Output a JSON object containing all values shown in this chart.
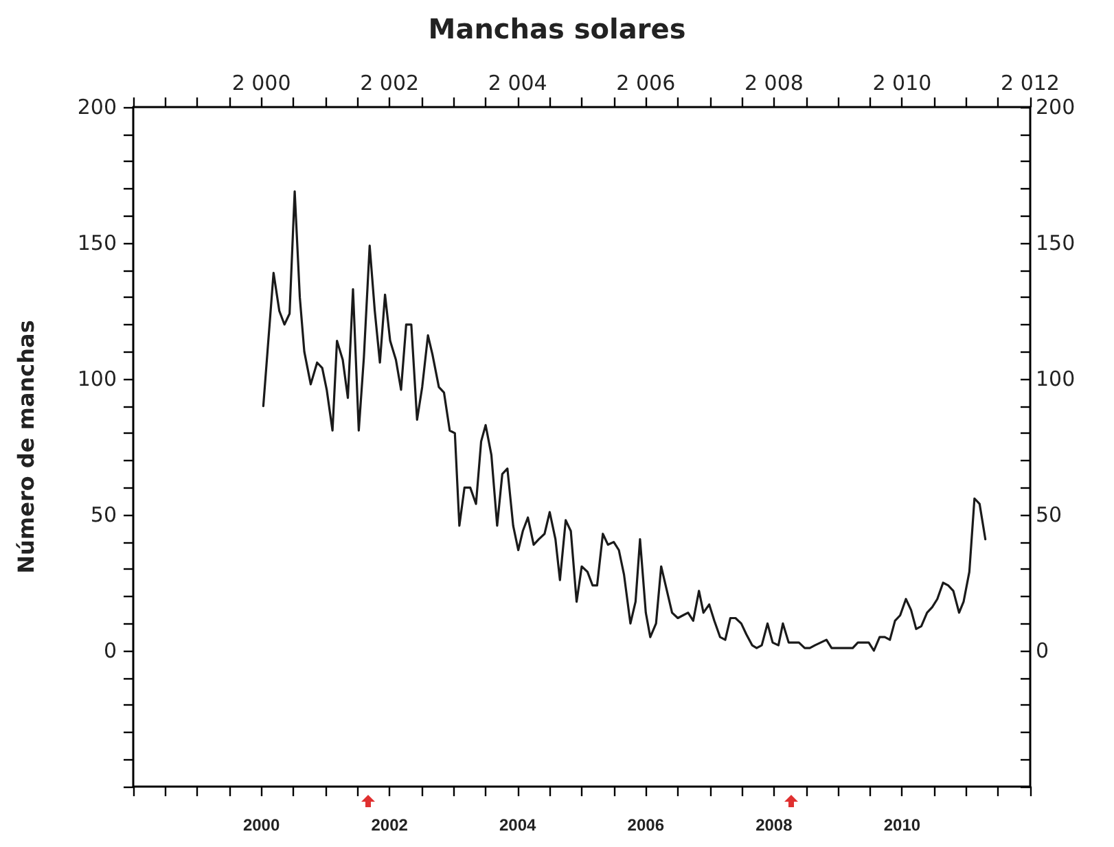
{
  "chart_data": {
    "type": "line",
    "title": "Manchas solares",
    "ylabel": "Número de manchas",
    "x": [
      2000.03,
      2000.19,
      2000.28,
      2000.36,
      2000.44,
      2000.52,
      2000.6,
      2000.67,
      2000.77,
      2000.87,
      2000.95,
      2001.02,
      2001.11,
      2001.18,
      2001.27,
      2001.35,
      2001.43,
      2001.52,
      2001.6,
      2001.69,
      2001.77,
      2001.85,
      2001.93,
      2002.01,
      2002.1,
      2002.18,
      2002.26,
      2002.34,
      2002.43,
      2002.51,
      2002.6,
      2002.67,
      2002.77,
      2002.85,
      2002.94,
      2003.02,
      2003.09,
      2003.17,
      2003.26,
      2003.35,
      2003.43,
      2003.5,
      2003.59,
      2003.68,
      2003.76,
      2003.84,
      2003.93,
      2004.01,
      2004.08,
      2004.16,
      2004.25,
      2004.33,
      2004.42,
      2004.5,
      2004.59,
      2004.66,
      2004.75,
      2004.83,
      2004.92,
      2005.0,
      2005.09,
      2005.17,
      2005.24,
      2005.33,
      2005.41,
      2005.5,
      2005.58,
      2005.66,
      2005.76,
      2005.84,
      2005.91,
      2006.0,
      2006.07,
      2006.16,
      2006.24,
      2006.32,
      2006.41,
      2006.5,
      2006.58,
      2006.66,
      2006.74,
      2006.83,
      2006.9,
      2006.99,
      2007.07,
      2007.16,
      2007.24,
      2007.32,
      2007.4,
      2007.49,
      2007.57,
      2007.66,
      2007.73,
      2007.81,
      2007.9,
      2007.98,
      2008.07,
      2008.14,
      2008.23,
      2008.31,
      2008.39,
      2008.48,
      2008.56,
      2008.64,
      2008.73,
      2008.82,
      2008.9,
      2008.99,
      2009.07,
      2009.15,
      2009.23,
      2009.31,
      2009.4,
      2009.48,
      2009.56,
      2009.65,
      2009.73,
      2009.81,
      2009.89,
      2009.97,
      2010.06,
      2010.14,
      2010.22,
      2010.3,
      2010.39,
      2010.47,
      2010.55,
      2010.64,
      2010.72,
      2010.8,
      2010.89,
      2010.96,
      2011.05,
      2011.13,
      2011.21,
      2011.3
    ],
    "series": [
      {
        "color": "#1a1a1a",
        "values": [
          90,
          139,
          125,
          120,
          124,
          169,
          130,
          110,
          98,
          106,
          104,
          96,
          81,
          114,
          107,
          93,
          133,
          81,
          108,
          149,
          125,
          106,
          131,
          114,
          107,
          96,
          120,
          120,
          85,
          97,
          116,
          109,
          97,
          95,
          81,
          80,
          46,
          60,
          60,
          54,
          77,
          83,
          72,
          46,
          65,
          67,
          46,
          37,
          44,
          49,
          39,
          41,
          43,
          51,
          41,
          26,
          48,
          44,
          18,
          31,
          29,
          24,
          24,
          43,
          39,
          40,
          37,
          28,
          10,
          18,
          41,
          14,
          5,
          10,
          31,
          23,
          14,
          12,
          13,
          14,
          11,
          22,
          14,
          17,
          11,
          5,
          4,
          12,
          12,
          10,
          6,
          2,
          1,
          2,
          10,
          3,
          2,
          10,
          3,
          3,
          3,
          1,
          1,
          2,
          3,
          4,
          1,
          1,
          1,
          1,
          1,
          3,
          3,
          3,
          0,
          5,
          5,
          4,
          11,
          13,
          19,
          15,
          8,
          9,
          14,
          16,
          19,
          25,
          24,
          22,
          14,
          18,
          29,
          56,
          54,
          41
        ]
      }
    ],
    "xlim": [
      1998,
      2012
    ],
    "xticks": [
      {
        "value": 1998,
        "label": null
      },
      {
        "value": 1998.5,
        "label": null
      },
      {
        "value": 1999,
        "label": null
      },
      {
        "value": 1999.5,
        "label": null
      },
      {
        "value": 2000,
        "label": "2000"
      },
      {
        "value": 2000.5,
        "label": null
      },
      {
        "value": 2001,
        "label": null
      },
      {
        "value": 2001.5,
        "label": null
      },
      {
        "value": 2002,
        "label": "2002"
      },
      {
        "value": 2002.5,
        "label": null
      },
      {
        "value": 2003,
        "label": null
      },
      {
        "value": 2003.5,
        "label": null
      },
      {
        "value": 2004,
        "label": "2004"
      },
      {
        "value": 2004.5,
        "label": null
      },
      {
        "value": 2005,
        "label": null
      },
      {
        "value": 2005.5,
        "label": null
      },
      {
        "value": 2006,
        "label": "2006"
      },
      {
        "value": 2006.5,
        "label": null
      },
      {
        "value": 2007,
        "label": null
      },
      {
        "value": 2007.5,
        "label": null
      },
      {
        "value": 2008,
        "label": "2008"
      },
      {
        "value": 2008.5,
        "label": null
      },
      {
        "value": 2009,
        "label": null
      },
      {
        "value": 2009.5,
        "label": null
      },
      {
        "value": 2010,
        "label": "2010"
      },
      {
        "value": 2010.5,
        "label": null
      },
      {
        "value": 2011,
        "label": null
      },
      {
        "value": 2011.5,
        "label": null
      },
      {
        "value": 2012,
        "label": null
      }
    ],
    "x2lim": [
      1998,
      2012
    ],
    "x2ticks": [
      {
        "value": 1998,
        "label": null
      },
      {
        "value": 1998.5,
        "label": null
      },
      {
        "value": 1999,
        "label": null
      },
      {
        "value": 1999.5,
        "label": null
      },
      {
        "value": 2000,
        "label": "2 000"
      },
      {
        "value": 2000.5,
        "label": null
      },
      {
        "value": 2001,
        "label": null
      },
      {
        "value": 2001.5,
        "label": null
      },
      {
        "value": 2002,
        "label": "2 002"
      },
      {
        "value": 2002.5,
        "label": null
      },
      {
        "value": 2003,
        "label": null
      },
      {
        "value": 2003.5,
        "label": null
      },
      {
        "value": 2004,
        "label": "2 004"
      },
      {
        "value": 2004.5,
        "label": null
      },
      {
        "value": 2005,
        "label": null
      },
      {
        "value": 2005.5,
        "label": null
      },
      {
        "value": 2006,
        "label": "2 006"
      },
      {
        "value": 2006.5,
        "label": null
      },
      {
        "value": 2007,
        "label": null
      },
      {
        "value": 2007.5,
        "label": null
      },
      {
        "value": 2008,
        "label": "2 008"
      },
      {
        "value": 2008.5,
        "label": null
      },
      {
        "value": 2009,
        "label": null
      },
      {
        "value": 2009.5,
        "label": null
      },
      {
        "value": 2010,
        "label": "2 010"
      },
      {
        "value": 2010.5,
        "label": null
      },
      {
        "value": 2011,
        "label": null
      },
      {
        "value": 2011.5,
        "label": null
      },
      {
        "value": 2012,
        "label": "2 012"
      }
    ],
    "ylim": [
      -50,
      200
    ],
    "yticks": [
      {
        "value": -50,
        "label": null
      },
      {
        "value": -40,
        "label": null
      },
      {
        "value": -30,
        "label": null
      },
      {
        "value": -20,
        "label": null
      },
      {
        "value": -10,
        "label": null
      },
      0,
      {
        "value": 10,
        "label": null
      },
      {
        "value": 20,
        "label": null
      },
      {
        "value": 30,
        "label": null
      },
      {
        "value": 40,
        "label": null
      },
      50,
      {
        "value": 60,
        "label": null
      },
      {
        "value": 70,
        "label": null
      },
      {
        "value": 80,
        "label": null
      },
      {
        "value": 90,
        "label": null
      },
      100,
      {
        "value": 110,
        "label": null
      },
      {
        "value": 120,
        "label": null
      },
      {
        "value": 130,
        "label": null
      },
      {
        "value": 140,
        "label": null
      },
      150,
      {
        "value": 160,
        "label": null
      },
      {
        "value": 170,
        "label": null
      },
      {
        "value": 180,
        "label": null
      },
      {
        "value": 190,
        "label": null
      },
      200
    ],
    "y2lim": [
      -50,
      200
    ],
    "y2ticks": [
      {
        "value": -50,
        "label": null
      },
      {
        "value": -40,
        "label": null
      },
      {
        "value": -30,
        "label": null
      },
      {
        "value": -20,
        "label": null
      },
      {
        "value": -10,
        "label": null
      },
      0,
      {
        "value": 10,
        "label": null
      },
      {
        "value": 20,
        "label": null
      },
      {
        "value": 30,
        "label": null
      },
      {
        "value": 40,
        "label": null
      },
      50,
      {
        "value": 60,
        "label": null
      },
      {
        "value": 70,
        "label": null
      },
      {
        "value": 80,
        "label": null
      },
      {
        "value": 90,
        "label": null
      },
      100,
      {
        "value": 110,
        "label": null
      },
      {
        "value": 120,
        "label": null
      },
      {
        "value": 130,
        "label": null
      },
      {
        "value": 140,
        "label": null
      },
      150,
      {
        "value": 160,
        "label": null
      },
      {
        "value": 170,
        "label": null
      },
      {
        "value": 180,
        "label": null
      },
      {
        "value": 190,
        "label": null
      },
      200
    ],
    "marker": "none",
    "line_style": "solid"
  }
}
